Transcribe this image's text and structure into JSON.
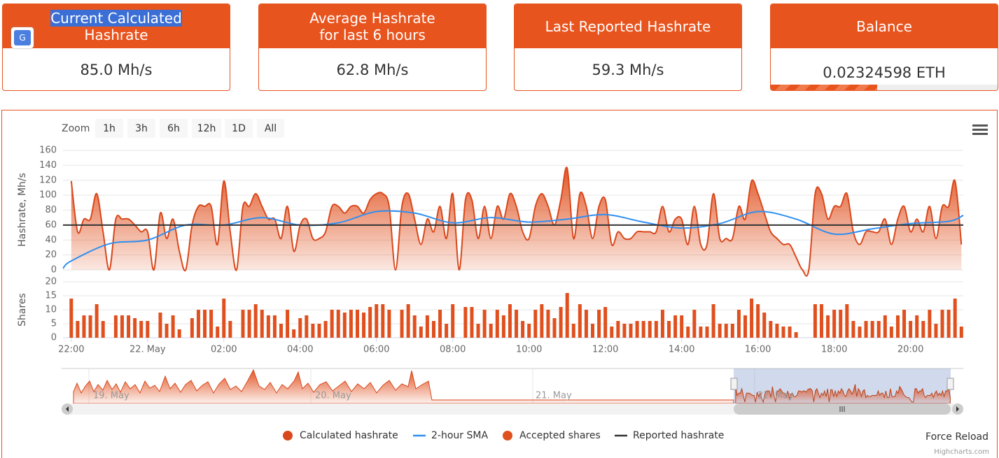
{
  "cards": [
    {
      "title_line1": "Current Calculated",
      "title_line2": "Hashrate",
      "value": "85.0 Mh/s"
    },
    {
      "title_line1": "Average Hashrate",
      "title_line2": "for last 6 hours",
      "value": "62.8 Mh/s"
    },
    {
      "title_line1": "Last Reported Hashrate",
      "value": "59.3 Mh/s"
    },
    {
      "title_line1": "Balance",
      "value": "0.02324598 ETH",
      "progress": 47
    }
  ],
  "zoom": {
    "label": "Zoom",
    "buttons": [
      "1h",
      "3h",
      "6h",
      "12h",
      "1D",
      "All"
    ]
  },
  "navigator_labels": [
    "19. May",
    "20. May",
    "21. May",
    "22. May"
  ],
  "force_reload": "Force Reload",
  "credits": "Highcharts.com",
  "chart_data": [
    {
      "type": "line",
      "y_label": "Hashrate, Mh/s",
      "xlim": [
        -13,
        1403
      ],
      "ylim": [
        0,
        160
      ],
      "yticks": [
        0,
        20,
        40,
        60,
        80,
        100,
        120,
        140,
        160
      ],
      "grid": true,
      "series": [
        {
          "name": "Calculated hashrate",
          "type": "area",
          "color": "#d9481c",
          "x": [
            0,
            10,
            20,
            30,
            40,
            50,
            60,
            70,
            80,
            90,
            100,
            110,
            120,
            130,
            140,
            150,
            160,
            170,
            180,
            190,
            200,
            210,
            220,
            230,
            240,
            250,
            260,
            270,
            280,
            290,
            300,
            310,
            320,
            330,
            340,
            350,
            360,
            370,
            380,
            390,
            400,
            410,
            420,
            430,
            440,
            450,
            460,
            470,
            480,
            490,
            500,
            510,
            520,
            530,
            540,
            550,
            560,
            570,
            580,
            590,
            600,
            610,
            620,
            630,
            640,
            650,
            660,
            670,
            680,
            690,
            700,
            710,
            720,
            730,
            740,
            750,
            760,
            770,
            780,
            790,
            800,
            810,
            820,
            830,
            840,
            850,
            860,
            870,
            880,
            890,
            900,
            910,
            920,
            930,
            940,
            950,
            960,
            970,
            980,
            990,
            1000,
            1010,
            1020,
            1030,
            1040,
            1050,
            1060,
            1070,
            1080,
            1090,
            1100,
            1110,
            1120,
            1130,
            1140,
            1150,
            1160,
            1170,
            1180,
            1190,
            1200,
            1210,
            1220,
            1230,
            1240,
            1250,
            1260,
            1270,
            1280,
            1290,
            1300,
            1310,
            1320,
            1330,
            1340,
            1350,
            1360,
            1370,
            1380,
            1390,
            1400
          ],
          "values": [
            119,
            51,
            68,
            68,
            102,
            51,
            0,
            68,
            68,
            68,
            60,
            51,
            51,
            0,
            76,
            42,
            68,
            25,
            0,
            60,
            85,
            85,
            85,
            34,
            119,
            51,
            0,
            85,
            85,
            102,
            85,
            68,
            68,
            42,
            85,
            25,
            60,
            68,
            42,
            42,
            51,
            85,
            85,
            76,
            85,
            85,
            76,
            94,
            102,
            102,
            85,
            0,
            85,
            102,
            68,
            34,
            68,
            51,
            85,
            42,
            102,
            0,
            94,
            94,
            42,
            85,
            42,
            85,
            68,
            102,
            85,
            51,
            42,
            85,
            102,
            85,
            60,
            94,
            136,
            42,
            102,
            85,
            42,
            85,
            94,
            34,
            51,
            42,
            42,
            51,
            51,
            51,
            51,
            85,
            51,
            68,
            68,
            34,
            85,
            34,
            34,
            102,
            42,
            42,
            42,
            85,
            68,
            119,
            102,
            76,
            51,
            42,
            34,
            34,
            17,
            0,
            0,
            102,
            102,
            68,
            85,
            85,
            102,
            51,
            34,
            51,
            51,
            51,
            68,
            34,
            68,
            85,
            51,
            68,
            51,
            85,
            42,
            85,
            85,
            119,
            34
          ]
        },
        {
          "name": "2-hour SMA",
          "type": "line",
          "color": "#2f8ff0",
          "x": [
            -13,
            0,
            60,
            120,
            180,
            240,
            300,
            360,
            420,
            480,
            540,
            600,
            660,
            720,
            780,
            840,
            900,
            960,
            1020,
            1080,
            1140,
            1200,
            1260,
            1320,
            1380,
            1403
          ],
          "values": [
            2,
            12,
            35,
            40,
            60,
            60,
            70,
            60,
            63,
            78,
            76,
            63,
            70,
            64,
            68,
            74,
            64,
            56,
            62,
            78,
            68,
            48,
            55,
            62,
            65,
            73
          ]
        },
        {
          "name": "Reported hashrate",
          "type": "line",
          "color": "#333333",
          "x": [
            -13,
            1403
          ],
          "values": [
            60,
            60
          ]
        }
      ]
    },
    {
      "type": "bar",
      "y_label": "Shares",
      "xlim": [
        -13,
        1403
      ],
      "ylim": [
        0,
        20
      ],
      "yticks": [
        0,
        5,
        10,
        15,
        20
      ],
      "xticks": [
        {
          "value": 0,
          "label": "22:00"
        },
        {
          "value": 120,
          "label": "22. May"
        },
        {
          "value": 240,
          "label": "02:00"
        },
        {
          "value": 360,
          "label": "04:00"
        },
        {
          "value": 480,
          "label": "06:00"
        },
        {
          "value": 600,
          "label": "08:00"
        },
        {
          "value": 720,
          "label": "10:00"
        },
        {
          "value": 840,
          "label": "12:00"
        },
        {
          "value": 960,
          "label": "14:00"
        },
        {
          "value": 1080,
          "label": "16:00"
        },
        {
          "value": 1200,
          "label": "18:00"
        },
        {
          "value": 1320,
          "label": "20:00"
        }
      ],
      "grid": true,
      "series": [
        {
          "name": "Accepted shares",
          "color": "#e0501e",
          "x": [
            0,
            10,
            20,
            30,
            40,
            50,
            60,
            70,
            80,
            90,
            100,
            110,
            120,
            130,
            140,
            150,
            160,
            170,
            180,
            190,
            200,
            210,
            220,
            230,
            240,
            250,
            260,
            270,
            280,
            290,
            300,
            310,
            320,
            330,
            340,
            350,
            360,
            370,
            380,
            390,
            400,
            410,
            420,
            430,
            440,
            450,
            460,
            470,
            480,
            490,
            500,
            510,
            520,
            530,
            540,
            550,
            560,
            570,
            580,
            590,
            600,
            610,
            620,
            630,
            640,
            650,
            660,
            670,
            680,
            690,
            700,
            710,
            720,
            730,
            740,
            750,
            760,
            770,
            780,
            790,
            800,
            810,
            820,
            830,
            840,
            850,
            860,
            870,
            880,
            890,
            900,
            910,
            920,
            930,
            940,
            950,
            960,
            970,
            980,
            990,
            1000,
            1010,
            1020,
            1030,
            1040,
            1050,
            1060,
            1070,
            1080,
            1090,
            1100,
            1110,
            1120,
            1130,
            1140,
            1150,
            1160,
            1170,
            1180,
            1190,
            1200,
            1210,
            1220,
            1230,
            1240,
            1250,
            1260,
            1270,
            1280,
            1290,
            1300,
            1310,
            1320,
            1330,
            1340,
            1350,
            1360,
            1370,
            1380,
            1390,
            1400
          ],
          "values": [
            14,
            6,
            8,
            8,
            12,
            6,
            0,
            8,
            8,
            8,
            7,
            6,
            6,
            0,
            9,
            5,
            8,
            3,
            0,
            7,
            10,
            10,
            10,
            4,
            14,
            6,
            0,
            10,
            10,
            12,
            10,
            8,
            8,
            5,
            10,
            3,
            7,
            8,
            5,
            5,
            6,
            10,
            10,
            9,
            10,
            10,
            9,
            11,
            12,
            12,
            10,
            0,
            10,
            12,
            8,
            4,
            8,
            6,
            10,
            5,
            12,
            0,
            11,
            11,
            5,
            10,
            5,
            10,
            8,
            12,
            10,
            6,
            5,
            10,
            12,
            10,
            7,
            11,
            16,
            5,
            12,
            10,
            5,
            10,
            11,
            4,
            6,
            5,
            5,
            6,
            6,
            6,
            6,
            10,
            6,
            8,
            8,
            4,
            10,
            4,
            4,
            12,
            5,
            5,
            5,
            10,
            8,
            14,
            12,
            9,
            6,
            5,
            4,
            4,
            2,
            0,
            0,
            12,
            12,
            8,
            10,
            10,
            12,
            6,
            4,
            6,
            6,
            6,
            8,
            4,
            8,
            10,
            6,
            8,
            6,
            10,
            5,
            10,
            10,
            14,
            4
          ]
        }
      ]
    }
  ]
}
